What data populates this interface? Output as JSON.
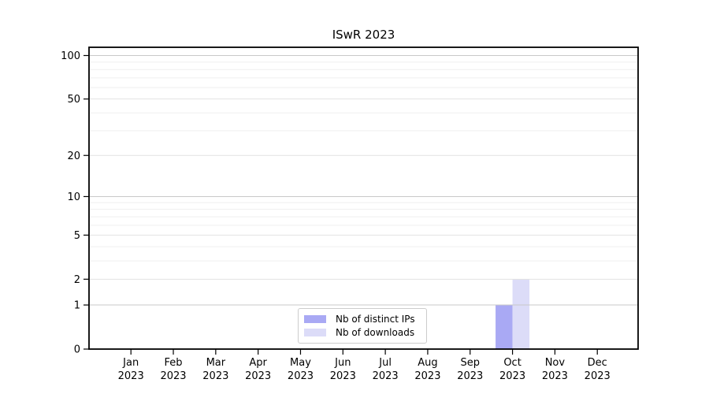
{
  "title": "ISwR 2023",
  "chart_data": {
    "type": "bar",
    "title": "ISwR 2023",
    "categories": [
      "Jan 2023",
      "Feb 2023",
      "Mar 2023",
      "Apr 2023",
      "May 2023",
      "Jun 2023",
      "Jul 2023",
      "Aug 2023",
      "Sep 2023",
      "Oct 2023",
      "Nov 2023",
      "Dec 2023"
    ],
    "series": [
      {
        "name": "Nb of distinct IPs",
        "color": "#a9a9f4",
        "values": [
          0,
          0,
          0,
          0,
          0,
          0,
          0,
          0,
          0,
          1,
          0,
          0
        ]
      },
      {
        "name": "Nb of downloads",
        "color": "#dcdcf8",
        "values": [
          0,
          0,
          0,
          0,
          0,
          0,
          0,
          0,
          0,
          2,
          0,
          0
        ]
      }
    ],
    "xlabel": "",
    "ylabel": "",
    "y_scale": "log1p",
    "y_ticks": [
      0,
      1,
      2,
      5,
      10,
      20,
      50,
      100
    ],
    "y_decades": [
      1,
      10,
      100
    ],
    "y_minor_gridlines": [
      3,
      4,
      6,
      7,
      8,
      9,
      30,
      40,
      60,
      70,
      80,
      90
    ],
    "ylim": [
      0,
      114
    ],
    "grid": true,
    "legend_position": "bottom-center"
  },
  "colors": {
    "background": "#ffffff",
    "frame": "#000000",
    "major_grid": "#c9c9c9",
    "labeled_grid": "#e2e2e2",
    "minor_grid": "#efefef",
    "legend_border": "#cccccc"
  }
}
